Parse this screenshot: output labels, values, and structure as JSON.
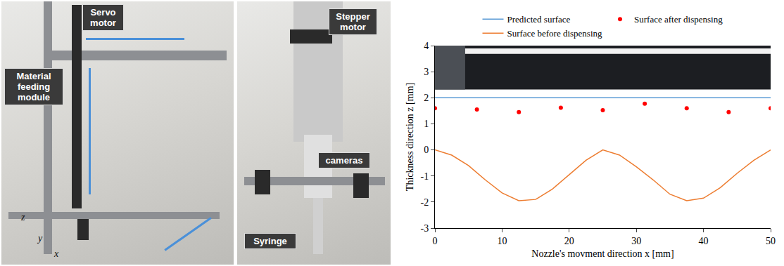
{
  "panels": [
    {
      "labels": [
        "Servo motor",
        "Material feeding module"
      ],
      "axes": [
        "z",
        "x",
        "y"
      ]
    },
    {
      "labels": [
        "Stepper motor",
        "cameras",
        "Syringe"
      ]
    }
  ],
  "chart_data": {
    "type": "line",
    "x_label": "Nozzle's movment direction x [mm]",
    "y_label": "Thickness direction z [mm]",
    "xlim": [
      0,
      50
    ],
    "xticks": [
      0,
      10,
      20,
      30,
      40,
      50
    ],
    "ylim": [
      -3,
      4
    ],
    "yticks": [
      -3,
      -2,
      -1,
      0,
      1,
      2,
      3,
      4
    ],
    "grid": false,
    "legend": "top",
    "series": [
      {
        "name": "Predicted surface",
        "type": "line",
        "color": "#5b9bd5",
        "x": [
          0,
          50
        ],
        "values": [
          2,
          2
        ]
      },
      {
        "name": "Surface after dispensing",
        "type": "scatter",
        "marker": "circle",
        "color": "#ff0000",
        "x": [
          0,
          6.25,
          12.5,
          18.75,
          25,
          31.25,
          37.5,
          43.75,
          50
        ],
        "values": [
          1.6,
          1.55,
          1.45,
          1.62,
          1.52,
          1.77,
          1.6,
          1.45,
          1.6
        ]
      },
      {
        "name": "Surface before dispensing",
        "type": "line",
        "color": "#ed7d31",
        "x": [
          0,
          2.5,
          5,
          7.5,
          10,
          12.5,
          15,
          17.5,
          20,
          22.5,
          25,
          27.5,
          30,
          32.5,
          35,
          37.5,
          40,
          42.5,
          45,
          47.5,
          50
        ],
        "values": [
          0,
          -0.2,
          -0.6,
          -1.15,
          -1.65,
          -1.95,
          -1.9,
          -1.5,
          -0.95,
          -0.4,
          0,
          -0.2,
          -0.65,
          -1.15,
          -1.7,
          -1.95,
          -1.85,
          -1.45,
          -0.9,
          -0.4,
          0
        ]
      }
    ]
  }
}
